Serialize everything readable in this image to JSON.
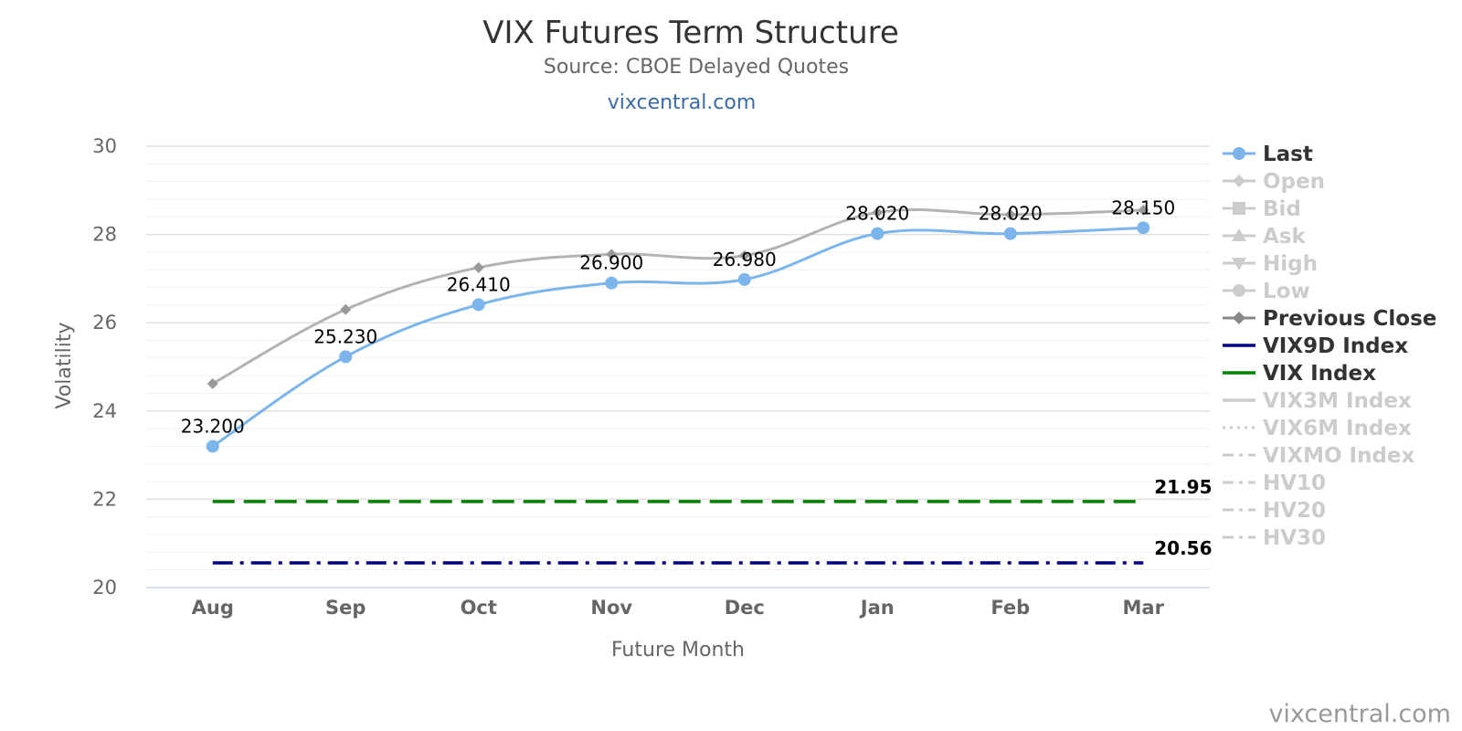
{
  "chart_data": {
    "type": "line",
    "title": "VIX Futures Term Structure",
    "subtitle": "Source: CBOE Delayed Quotes",
    "link": "vixcentral.com",
    "credit": "vixcentral.com",
    "xlabel": "Future Month",
    "ylabel": "Volatility",
    "ylim": [
      20,
      30
    ],
    "yticks": [
      20,
      22,
      24,
      26,
      28,
      30
    ],
    "grid": true,
    "legend_position": "right",
    "categories": [
      "Aug",
      "Sep",
      "Oct",
      "Nov",
      "Dec",
      "Jan",
      "Feb",
      "Mar"
    ],
    "series": [
      {
        "name": "Last",
        "values": [
          23.2,
          25.23,
          26.41,
          26.9,
          26.98,
          28.02,
          28.02,
          28.15
        ],
        "labels": [
          "23.200",
          "25.230",
          "26.410",
          "26.900",
          "26.980",
          "28.020",
          "28.020",
          "28.150"
        ],
        "color": "#7cb5ec",
        "visible": true,
        "marker": "circle"
      },
      {
        "name": "Previous Close",
        "values": [
          24.62,
          26.3,
          27.25,
          27.55,
          27.52,
          28.5,
          28.45,
          28.55
        ],
        "color": "#aaaaaa",
        "visible": true,
        "marker": "diamond"
      },
      {
        "name": "VIX9D Index",
        "value": 20.56,
        "value_label": "20.56",
        "color": "#000080",
        "dash": "long-dash-dot",
        "visible": true
      },
      {
        "name": "VIX Index",
        "value": 21.95,
        "value_label": "21.95",
        "color": "#008000",
        "dash": "long-dash",
        "visible": true
      }
    ],
    "legend": [
      {
        "name": "Last",
        "visible": true,
        "symbol": "circle",
        "color": "#7cb5ec"
      },
      {
        "name": "Open",
        "visible": false,
        "symbol": "diamond"
      },
      {
        "name": "Bid",
        "visible": false,
        "symbol": "square"
      },
      {
        "name": "Ask",
        "visible": false,
        "symbol": "triangle"
      },
      {
        "name": "High",
        "visible": false,
        "symbol": "triangle-down"
      },
      {
        "name": "Low",
        "visible": false,
        "symbol": "circle"
      },
      {
        "name": "Previous Close",
        "visible": true,
        "symbol": "diamond",
        "color": "#888888"
      },
      {
        "name": "VIX9D Index",
        "visible": true,
        "symbol": "line",
        "color": "#000080"
      },
      {
        "name": "VIX Index",
        "visible": true,
        "symbol": "line",
        "color": "#008000"
      },
      {
        "name": "VIX3M Index",
        "visible": false,
        "symbol": "line"
      },
      {
        "name": "VIX6M Index",
        "visible": false,
        "symbol": "dotted"
      },
      {
        "name": "VIXMO Index",
        "visible": false,
        "symbol": "dash-dot"
      },
      {
        "name": "HV10",
        "visible": false,
        "symbol": "dash-dot"
      },
      {
        "name": "HV20",
        "visible": false,
        "symbol": "dash-dot"
      },
      {
        "name": "HV30",
        "visible": false,
        "symbol": "dash-dot"
      }
    ]
  }
}
